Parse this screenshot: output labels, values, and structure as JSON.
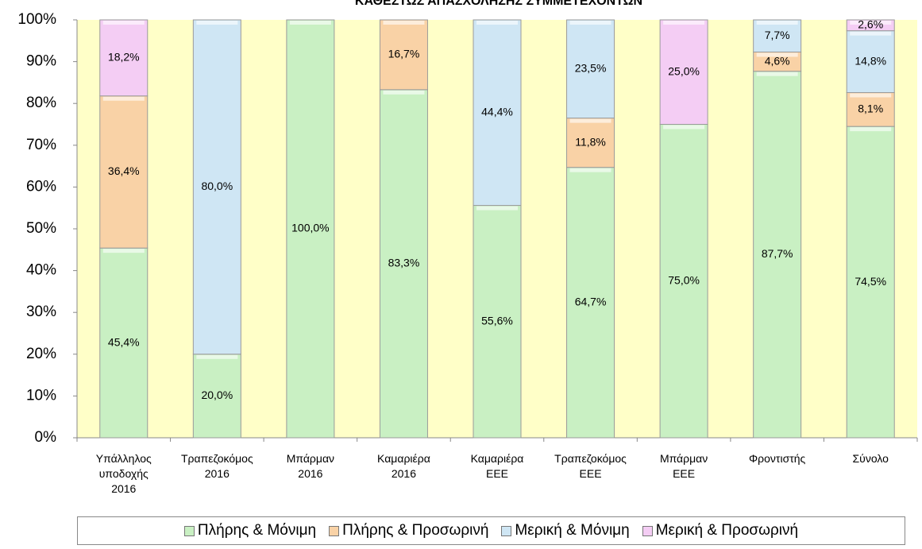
{
  "chart_data": {
    "type": "stacked_bar",
    "title": "ΚΑΘΕΣΤΩΣ ΑΠΑΣΧΟΛΗΣΗΣ ΣΥΜΜΕΤΕΧΟΝΤΩΝ",
    "categories": [
      "Υπάλληλος\nυποδοχής\n2016",
      "Τραπεζοκόμος\n2016",
      "Μπάρμαν\n2016",
      "Καμαριέρα\n2016",
      "Καμαριέρα\nΕΕΕ",
      "Τραπεζοκόμος\nΕΕΕ",
      "Μπάρμαν\nΕΕΕ",
      "Φροντιστής",
      "Σύνολο"
    ],
    "series": [
      {
        "name": "Πλήρης & Μόνιμη",
        "color": "#c9f0c3",
        "values": [
          45.4,
          20.0,
          100.0,
          83.3,
          55.6,
          64.7,
          75.0,
          87.7,
          74.5
        ],
        "value_labels": [
          "45,4%",
          "20,0%",
          "100,0%",
          "83,3%",
          "55,6%",
          "64,7%",
          "75,0%",
          "87,7%",
          "74,5%"
        ]
      },
      {
        "name": "Πλήρης & Προσωρινή",
        "color": "#f9d2a6",
        "values": [
          36.4,
          null,
          null,
          16.7,
          null,
          11.8,
          null,
          4.6,
          8.1
        ],
        "value_labels": [
          "36,4%",
          null,
          null,
          "16,7%",
          null,
          "11,8%",
          null,
          "4,6%",
          "8,1%"
        ]
      },
      {
        "name": "Μερική & Μόνιμη",
        "color": "#cfe6f4",
        "values": [
          null,
          80.0,
          null,
          null,
          44.4,
          23.5,
          null,
          7.7,
          14.8
        ],
        "value_labels": [
          null,
          "80,0%",
          null,
          null,
          "44,4%",
          "23,5%",
          null,
          "7,7%",
          "14,8%"
        ]
      },
      {
        "name": "Μερική & Προσωρινή",
        "color": "#f4cdf4",
        "values": [
          18.2,
          null,
          null,
          null,
          null,
          null,
          25.0,
          null,
          2.6
        ],
        "value_labels": [
          "18,2%",
          null,
          null,
          null,
          null,
          null,
          "25,0%",
          null,
          "2,6%"
        ]
      }
    ],
    "ylim": [
      0,
      100
    ],
    "yticks": [
      {
        "value": 0,
        "label": "0%"
      },
      {
        "value": 10,
        "label": "10%"
      },
      {
        "value": 20,
        "label": "20%"
      },
      {
        "value": 30,
        "label": "30%"
      },
      {
        "value": 40,
        "label": "40%"
      },
      {
        "value": 50,
        "label": "50%"
      },
      {
        "value": 60,
        "label": "60%"
      },
      {
        "value": 70,
        "label": "70%"
      },
      {
        "value": 80,
        "label": "80%"
      },
      {
        "value": 90,
        "label": "90%"
      },
      {
        "value": 100,
        "label": "100%"
      }
    ],
    "plot_background": "#ffffc8",
    "grid": false,
    "legend": "bottom"
  }
}
